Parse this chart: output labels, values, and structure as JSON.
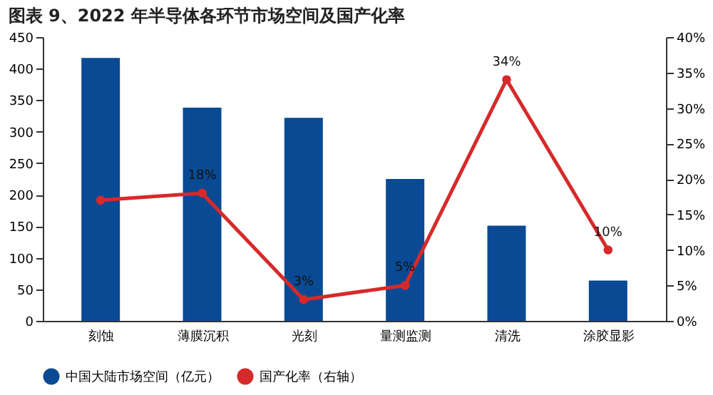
{
  "chart_data": {
    "type": "bar",
    "title": "图表 9、2022 年半导体各环节市场空间及国产化率",
    "categories": [
      "刻蚀",
      "薄膜沉积",
      "光刻",
      "量测监测",
      "清洗",
      "涂胶显影"
    ],
    "series": [
      {
        "name": "中国大陆市场空间（亿元）",
        "color": "#0a4a94",
        "values": [
          417,
          338,
          322,
          225,
          151,
          64
        ]
      },
      {
        "name": "国产化率（右轴）",
        "type": "line",
        "axis": "y2",
        "color": "#d62a2a",
        "marker": "circle",
        "values": [
          17,
          18,
          3,
          5,
          34,
          10
        ],
        "value_labels": [
          null,
          "18%",
          "3%",
          "5%",
          "34%",
          "10%"
        ]
      }
    ],
    "ylim": [
      0,
      450
    ],
    "yticks": [
      0,
      50,
      100,
      150,
      200,
      250,
      300,
      350,
      400,
      450
    ],
    "y2lim": [
      0,
      40
    ],
    "y2ticks": [
      {
        "value": 0,
        "label": "0%"
      },
      {
        "value": 5,
        "label": "5%"
      },
      {
        "value": 10,
        "label": "10%"
      },
      {
        "value": 15,
        "label": "15%"
      },
      {
        "value": 20,
        "label": "20%"
      },
      {
        "value": 25,
        "label": "25%"
      },
      {
        "value": 30,
        "label": "30%"
      },
      {
        "value": 35,
        "label": "35%"
      },
      {
        "value": 40,
        "label": "40%"
      }
    ],
    "grid": false,
    "legend": "bottom"
  }
}
